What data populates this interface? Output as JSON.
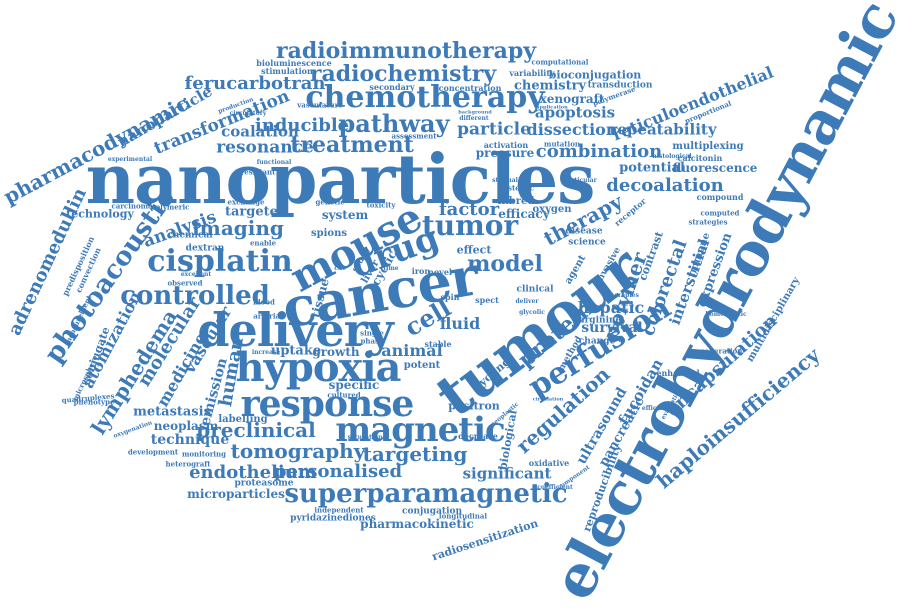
{
  "colors": {
    "word": "#3d7ab8",
    "background": "#ffffff"
  },
  "words": [
    {
      "id": "nanoparticles",
      "text": "nanoparticles"
    },
    {
      "id": "electrohydrodynamic",
      "text": "electrohydrodynamic"
    },
    {
      "id": "tumour",
      "text": "tumour"
    },
    {
      "id": "cancer",
      "text": "cancer"
    },
    {
      "id": "delivery",
      "text": "delivery"
    },
    {
      "id": "mouse",
      "text": "mouse"
    },
    {
      "id": "drug",
      "text": "drug"
    },
    {
      "id": "hypoxia",
      "text": "hypoxia"
    },
    {
      "id": "response",
      "text": "response"
    },
    {
      "id": "magnetic",
      "text": "magnetic"
    },
    {
      "id": "cisplatin",
      "text": "cisplatin"
    },
    {
      "id": "chemotherapy",
      "text": "chemotherapy"
    },
    {
      "id": "radiochemistry",
      "text": "radiochemistry"
    },
    {
      "id": "radioimmunotherapy",
      "text": "radioimmunotherapy"
    },
    {
      "id": "superparamagnetic",
      "text": "superparamagnetic"
    },
    {
      "id": "perfusion",
      "text": "perfusion"
    },
    {
      "id": "tumor",
      "text": "tumor"
    },
    {
      "id": "controlled",
      "text": "controlled"
    },
    {
      "id": "pathway",
      "text": "pathway"
    },
    {
      "id": "treatment",
      "text": "treatment"
    },
    {
      "id": "photoacoustic",
      "text": "photoacoustic"
    },
    {
      "id": "pharmacodynamic",
      "text": "pharmacodynamic"
    },
    {
      "id": "haploinsufficiency",
      "text": "haploinsufficiency"
    },
    {
      "id": "encapsulation",
      "text": "encapsulation"
    },
    {
      "id": "tomography",
      "text": "tomography"
    },
    {
      "id": "targeting",
      "text": "targeting"
    },
    {
      "id": "preclinical",
      "text": "preclinical"
    },
    {
      "id": "personalised",
      "text": "personalised"
    },
    {
      "id": "endothelium",
      "text": "endothelium"
    },
    {
      "id": "ferucarbotran",
      "text": "ferucarbotran"
    },
    {
      "id": "transformation",
      "text": "transformation"
    },
    {
      "id": "nanoparticle",
      "text": "nanoparticle"
    },
    {
      "id": "inducible",
      "text": "inducible"
    },
    {
      "id": "resonance",
      "text": "resonance"
    },
    {
      "id": "coalation",
      "text": "coalation"
    },
    {
      "id": "particle",
      "text": "particle"
    },
    {
      "id": "dissection",
      "text": "dissection"
    },
    {
      "id": "repeatability",
      "text": "repeatability"
    },
    {
      "id": "combination",
      "text": "combination"
    },
    {
      "id": "decoalation",
      "text": "decoalation"
    },
    {
      "id": "apoptosis",
      "text": "apoptosis"
    },
    {
      "id": "xenograft",
      "text": "xenograft"
    },
    {
      "id": "reticuloendothelial",
      "text": "reticuloendothelial"
    },
    {
      "id": "chemistry",
      "text": "chemistry"
    },
    {
      "id": "bioconjugation",
      "text": "bioconjugation"
    },
    {
      "id": "imaging",
      "text": "imaging"
    },
    {
      "id": "factor",
      "text": "factor"
    },
    {
      "id": "model",
      "text": "model"
    },
    {
      "id": "therapy",
      "text": "therapy"
    },
    {
      "id": "polymer",
      "text": "polymer"
    },
    {
      "id": "colorectal",
      "text": "colorectal"
    },
    {
      "id": "interstitial",
      "text": "interstitial"
    },
    {
      "id": "protein",
      "text": "protein"
    },
    {
      "id": "regulation",
      "text": "regulation"
    },
    {
      "id": "ultrasound",
      "text": "ultrasound"
    },
    {
      "id": "pancreatic",
      "text": "pancreatic"
    },
    {
      "id": "fucoidan",
      "text": "fucoidan"
    },
    {
      "id": "reproducibility",
      "text": "reproducibility"
    },
    {
      "id": "radiosensitization",
      "text": "radiosensitization"
    },
    {
      "id": "adrenomedullin",
      "text": "adrenomedullin"
    },
    {
      "id": "lymphedema",
      "text": "lymphedema"
    },
    {
      "id": "atomization",
      "text": "atomization"
    },
    {
      "id": "molecular",
      "text": "molecular"
    },
    {
      "id": "vascular",
      "text": "vascular"
    },
    {
      "id": "medicine",
      "text": "medicine"
    },
    {
      "id": "human",
      "text": "human"
    },
    {
      "id": "emission",
      "text": "emission"
    },
    {
      "id": "analysis",
      "text": "analysis"
    },
    {
      "id": "animal",
      "text": "animal"
    },
    {
      "id": "significant",
      "text": "significant"
    },
    {
      "id": "pharmacokinetic",
      "text": "pharmacokinetic"
    },
    {
      "id": "microparticles",
      "text": "microparticles"
    },
    {
      "id": "technique",
      "text": "technique"
    },
    {
      "id": "neoplasm",
      "text": "neoplasm"
    },
    {
      "id": "metastasis",
      "text": "metastasis"
    },
    {
      "id": "cell",
      "text": "cell"
    },
    {
      "id": "fluid",
      "text": "fluid"
    },
    {
      "id": "hepatic",
      "text": "hepatic"
    },
    {
      "id": "survival",
      "text": "survival"
    },
    {
      "id": "potential",
      "text": "potential"
    },
    {
      "id": "fluorescence",
      "text": "fluorescence"
    },
    {
      "id": "multiplexing",
      "text": "multiplexing"
    },
    {
      "id": "multidisciplinary",
      "text": "multidisciplinary"
    },
    {
      "id": "uptake",
      "text": "uptake"
    },
    {
      "id": "growth",
      "text": "growth"
    },
    {
      "id": "specific",
      "text": "specific"
    },
    {
      "id": "positron",
      "text": "positron"
    },
    {
      "id": "biological",
      "text": "biological"
    },
    {
      "id": "tissue",
      "text": "tissue"
    },
    {
      "id": "targeted",
      "text": "targeted"
    },
    {
      "id": "system",
      "text": "system"
    },
    {
      "id": "efficacy",
      "text": "efficacy"
    },
    {
      "id": "inbred",
      "text": "inbred"
    },
    {
      "id": "oxygen",
      "text": "oxygen"
    },
    {
      "id": "pressure",
      "text": "pressure"
    },
    {
      "id": "technology",
      "text": "technology"
    },
    {
      "id": "conjugate",
      "text": "conjugate"
    },
    {
      "id": "labelling",
      "text": "labelling"
    },
    {
      "id": "proteasome",
      "text": "proteasome"
    },
    {
      "id": "pyridazinediones",
      "text": "pyridazinediones"
    },
    {
      "id": "conjugation",
      "text": "conjugation"
    },
    {
      "id": "computational",
      "text": "computational"
    },
    {
      "id": "bioluminescence",
      "text": "bioluminescence"
    },
    {
      "id": "stimulation",
      "text": "stimulation"
    },
    {
      "id": "secondary",
      "text": "secondary"
    },
    {
      "id": "concentration",
      "text": "concentration"
    },
    {
      "id": "variability",
      "text": "variability"
    },
    {
      "id": "transduction",
      "text": "transduction"
    },
    {
      "id": "spions",
      "text": "spions"
    },
    {
      "id": "potent",
      "text": "potent"
    },
    {
      "id": "effect",
      "text": "effect"
    },
    {
      "id": "chemical",
      "text": "chemical"
    },
    {
      "id": "dextran",
      "text": "dextran"
    },
    {
      "id": "arginine",
      "text": "arginine"
    },
    {
      "id": "change",
      "text": "change"
    },
    {
      "id": "enhanced",
      "text": "enhanced"
    },
    {
      "id": "generation",
      "text": "generation"
    },
    {
      "id": "calcitonin",
      "text": "calcitonin"
    },
    {
      "id": "compound",
      "text": "compound"
    },
    {
      "id": "strategies",
      "text": "strategies"
    },
    {
      "id": "proportional",
      "text": "proportional"
    },
    {
      "id": "polymerase",
      "text": "polymerase"
    },
    {
      "id": "science",
      "text": "science"
    },
    {
      "id": "disease",
      "text": "disease"
    },
    {
      "id": "clinical",
      "text": "clinical"
    },
    {
      "id": "spect",
      "text": "spect"
    },
    {
      "id": "stable",
      "text": "stable"
    },
    {
      "id": "iron",
      "text": "iron"
    },
    {
      "id": "novel",
      "text": "novel"
    },
    {
      "id": "spin",
      "text": "spin"
    },
    {
      "id": "enable",
      "text": "enable"
    },
    {
      "id": "arterial",
      "text": "arterial"
    },
    {
      "id": "increase",
      "text": "increase"
    },
    {
      "id": "cultured",
      "text": "cultured"
    },
    {
      "id": "decrease",
      "text": "decrease"
    },
    {
      "id": "oxidative",
      "text": "oxidative"
    },
    {
      "id": "development",
      "text": "development"
    },
    {
      "id": "heterograft",
      "text": "heterograft"
    },
    {
      "id": "monitoring",
      "text": "monitoring"
    },
    {
      "id": "oxygenation",
      "text": "oxygenation"
    },
    {
      "id": "phenotype",
      "text": "phenotype"
    },
    {
      "id": "microsphere",
      "text": "microsphere"
    },
    {
      "id": "quadruplexes",
      "text": "quadruplexes"
    },
    {
      "id": "measurement",
      "text": "measurement"
    },
    {
      "id": "predisposition",
      "text": "predisposition"
    },
    {
      "id": "convection",
      "text": "convection"
    },
    {
      "id": "carcinoma",
      "text": "carcinoma"
    },
    {
      "id": "polymeric",
      "text": "polymeric"
    },
    {
      "id": "observed",
      "text": "observed"
    },
    {
      "id": "excellent",
      "text": "excellent"
    },
    {
      "id": "resistant",
      "text": "resistant"
    },
    {
      "id": "coefficient",
      "text": "coefficient"
    },
    {
      "id": "independent",
      "text": "independent"
    },
    {
      "id": "longitudinal",
      "text": "longitudinal"
    },
    {
      "id": "cycling",
      "text": "cycling"
    },
    {
      "id": "cyclic",
      "text": "cyclic"
    },
    {
      "id": "liver",
      "text": "liver"
    },
    {
      "id": "study",
      "text": "study"
    },
    {
      "id": "toxicity",
      "text": "toxicity"
    },
    {
      "id": "genetic",
      "text": "genetic"
    },
    {
      "id": "exchange",
      "text": "exchange"
    },
    {
      "id": "method",
      "text": "method"
    },
    {
      "id": "invasive",
      "text": "invasive"
    },
    {
      "id": "contrast",
      "text": "contrast"
    },
    {
      "id": "agent",
      "text": "agent"
    },
    {
      "id": "expression",
      "text": "expression"
    },
    {
      "id": "immune",
      "text": "immune"
    },
    {
      "id": "computed",
      "text": "computed"
    },
    {
      "id": "receptor",
      "text": "receptor"
    },
    {
      "id": "histological",
      "text": "histological"
    },
    {
      "id": "homeostatic",
      "text": "homeostatic"
    },
    {
      "id": "efficacious",
      "text": "efficacious"
    },
    {
      "id": "therapies",
      "text": "therapies"
    },
    {
      "id": "evaluation",
      "text": "evaluation"
    },
    {
      "id": "vasculature",
      "text": "vasculature"
    },
    {
      "id": "production",
      "text": "production"
    },
    {
      "id": "circulatory",
      "text": "circulatory"
    },
    {
      "id": "functional",
      "text": "functional"
    },
    {
      "id": "experimental",
      "text": "experimental"
    },
    {
      "id": "activation",
      "text": "activation"
    },
    {
      "id": "mutation",
      "text": "mutation"
    },
    {
      "id": "systemic",
      "text": "systemic"
    },
    {
      "id": "particular",
      "text": "particular"
    },
    {
      "id": "assessment",
      "text": "assessment"
    },
    {
      "id": "background",
      "text": "background"
    },
    {
      "id": "different",
      "text": "different"
    },
    {
      "id": "application",
      "text": "application"
    },
    {
      "id": "deliver",
      "text": "deliver"
    },
    {
      "id": "glycolic",
      "text": "glycolic"
    },
    {
      "id": "circulation",
      "text": "circulation"
    },
    {
      "id": "stromal",
      "text": "stromal"
    },
    {
      "id": "blood",
      "text": "blood"
    },
    {
      "id": "single",
      "text": "single"
    },
    {
      "id": "phase",
      "text": "phase"
    },
    {
      "id": "cdc",
      "text": "cdc"
    },
    {
      "id": "time",
      "text": "time"
    },
    {
      "id": "neoplastic",
      "text": "neoplastic"
    },
    {
      "id": "saturation",
      "text": "saturation"
    },
    {
      "id": "component",
      "text": "component"
    }
  ]
}
